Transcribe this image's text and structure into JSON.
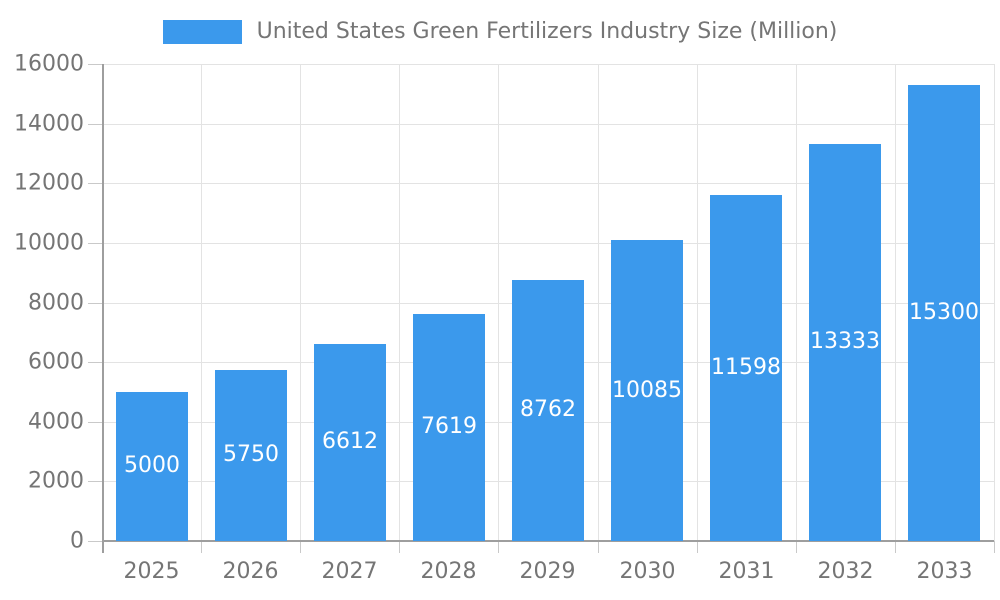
{
  "chart_data": {
    "type": "bar",
    "title": "United States Green Fertilizers Industry Size (Million)",
    "categories": [
      "2025",
      "2026",
      "2027",
      "2028",
      "2029",
      "2030",
      "2031",
      "2032",
      "2033"
    ],
    "values": [
      5000,
      5750,
      6612,
      7619,
      8762,
      10085,
      11598,
      13333,
      15300
    ],
    "series_name": "United States Green Fertilizers Industry Size (Million)",
    "xlabel": "",
    "ylabel": "",
    "yticks": [
      0,
      2000,
      4000,
      6000,
      8000,
      10000,
      12000,
      14000,
      16000
    ],
    "ylim": [
      0,
      16000
    ],
    "grid": true,
    "legend_position": "top",
    "value_labels": "inside-center"
  },
  "colors": {
    "bar": "#3B99EC",
    "text": "#757575",
    "grid": "#E3E3E3",
    "axis": "#9E9E9E",
    "tick": "#C9C9C9",
    "value_label": "#FFFFFF",
    "background": "#FFFFFF"
  }
}
